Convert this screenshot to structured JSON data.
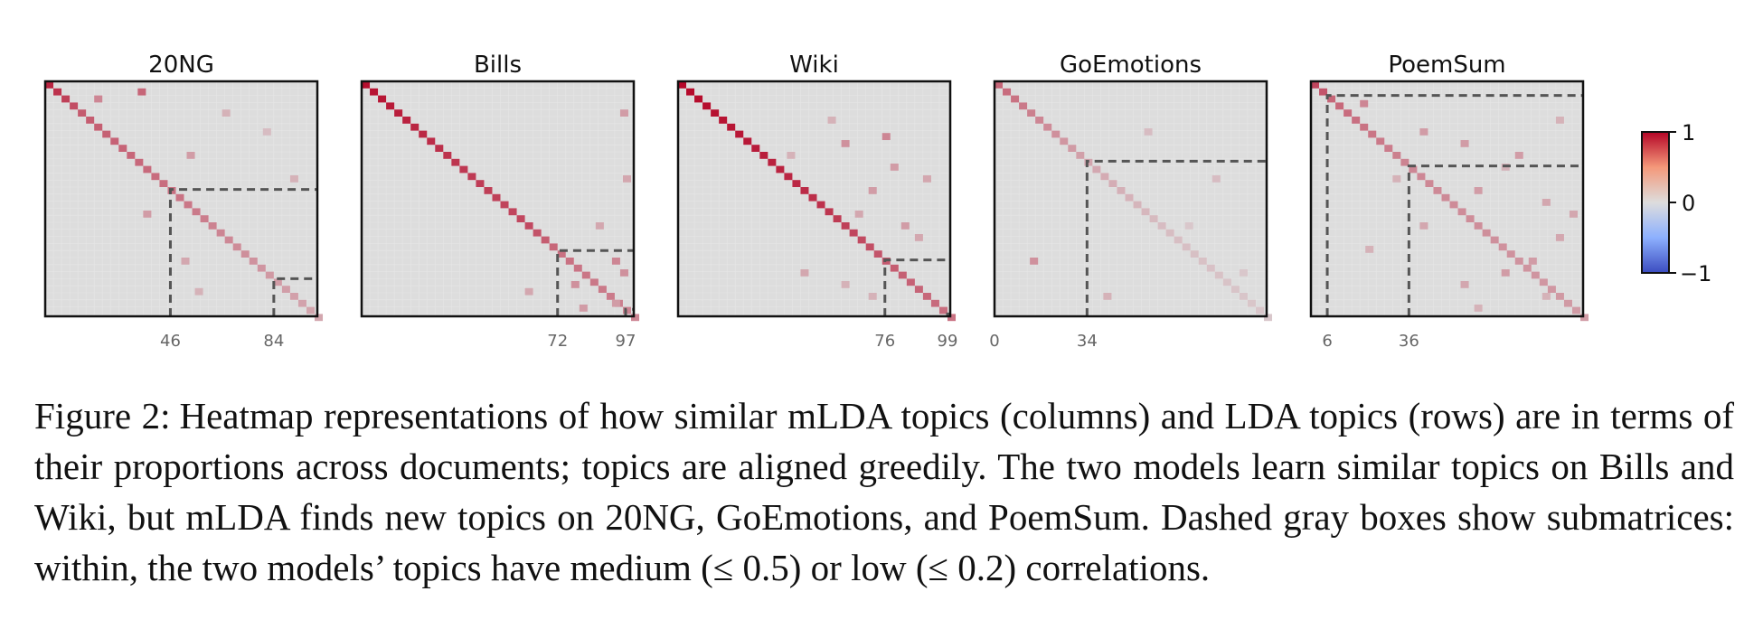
{
  "chart_data": [
    {
      "type": "heatmap",
      "title": "20NG",
      "n": 100,
      "xticks": [
        46,
        84
      ],
      "dashed_boxes": [
        46,
        84
      ],
      "scale": [
        -1,
        1
      ],
      "diag_profile": [
        [
          0,
          0.85
        ],
        [
          12,
          0.6
        ],
        [
          46,
          0.5
        ],
        [
          60,
          0.42
        ],
        [
          84,
          0.3
        ],
        [
          99,
          0.25
        ]
      ],
      "extra_cells": [
        [
          3,
          34,
          0.55
        ],
        [
          6,
          18,
          0.4
        ],
        [
          30,
          52,
          0.3
        ],
        [
          55,
          36,
          0.3
        ],
        [
          75,
          50,
          0.25
        ],
        [
          12,
          65,
          0.2
        ],
        [
          88,
          55,
          0.2
        ],
        [
          40,
          90,
          0.2
        ],
        [
          20,
          80,
          0.15
        ]
      ]
    },
    {
      "type": "heatmap",
      "title": "Bills",
      "n": 100,
      "xticks": [
        72,
        97
      ],
      "dashed_boxes": [
        72,
        97
      ],
      "scale": [
        -1,
        1
      ],
      "diag_profile": [
        [
          0,
          0.95
        ],
        [
          30,
          0.78
        ],
        [
          60,
          0.68
        ],
        [
          72,
          0.5
        ],
        [
          90,
          0.45
        ],
        [
          99,
          0.4
        ]
      ],
      "extra_cells": [
        [
          75,
          92,
          0.4
        ],
        [
          80,
          95,
          0.35
        ],
        [
          85,
          77,
          0.35
        ],
        [
          95,
          80,
          0.3
        ],
        [
          12,
          95,
          0.3
        ],
        [
          40,
          96,
          0.25
        ],
        [
          88,
          60,
          0.25
        ],
        [
          60,
          86,
          0.25
        ],
        [
          93,
          92,
          0.3
        ]
      ]
    },
    {
      "type": "heatmap",
      "title": "Wiki",
      "n": 100,
      "xticks": [
        76,
        99
      ],
      "dashed_boxes": [
        76,
        99
      ],
      "scale": [
        -1,
        1
      ],
      "diag_profile": [
        [
          0,
          0.98
        ],
        [
          25,
          0.9
        ],
        [
          50,
          0.8
        ],
        [
          76,
          0.6
        ],
        [
          99,
          0.5
        ]
      ],
      "extra_cells": [
        [
          25,
          60,
          0.35
        ],
        [
          22,
          75,
          0.4
        ],
        [
          35,
          78,
          0.3
        ],
        [
          45,
          70,
          0.3
        ],
        [
          60,
          82,
          0.3
        ],
        [
          65,
          87,
          0.25
        ],
        [
          40,
          90,
          0.25
        ],
        [
          55,
          65,
          0.25
        ],
        [
          80,
          45,
          0.25
        ],
        [
          85,
          60,
          0.2
        ],
        [
          90,
          70,
          0.2
        ],
        [
          30,
          40,
          0.2
        ],
        [
          15,
          55,
          0.2
        ]
      ]
    },
    {
      "type": "heatmap",
      "title": "GoEmotions",
      "n": 100,
      "xticks": [
        0,
        34
      ],
      "dashed_boxes": [
        34
      ],
      "scale": [
        -1,
        1
      ],
      "diag_profile": [
        [
          0,
          0.55
        ],
        [
          15,
          0.4
        ],
        [
          34,
          0.25
        ],
        [
          60,
          0.15
        ],
        [
          99,
          0.1
        ]
      ],
      "extra_cells": [
        [
          75,
          13,
          0.35
        ],
        [
          90,
          40,
          0.2
        ],
        [
          20,
          55,
          0.15
        ],
        [
          40,
          80,
          0.15
        ],
        [
          60,
          70,
          0.1
        ],
        [
          80,
          90,
          0.1
        ]
      ]
    },
    {
      "type": "heatmap",
      "title": "PoemSum",
      "n": 100,
      "xticks": [
        6,
        36
      ],
      "dashed_boxes": [
        6,
        36
      ],
      "scale": [
        -1,
        1
      ],
      "diag_profile": [
        [
          0,
          0.7
        ],
        [
          6,
          0.55
        ],
        [
          36,
          0.4
        ],
        [
          70,
          0.35
        ],
        [
          99,
          0.3
        ]
      ],
      "extra_cells": [
        [
          8,
          18,
          0.4
        ],
        [
          20,
          40,
          0.3
        ],
        [
          25,
          55,
          0.3
        ],
        [
          30,
          75,
          0.3
        ],
        [
          45,
          60,
          0.3
        ],
        [
          50,
          85,
          0.25
        ],
        [
          60,
          40,
          0.25
        ],
        [
          65,
          90,
          0.25
        ],
        [
          70,
          20,
          0.2
        ],
        [
          80,
          70,
          0.3
        ],
        [
          85,
          55,
          0.25
        ],
        [
          90,
          85,
          0.2
        ],
        [
          15,
          90,
          0.2
        ],
        [
          40,
          30,
          0.2
        ],
        [
          55,
          95,
          0.25
        ],
        [
          75,
          80,
          0.3
        ],
        [
          35,
          70,
          0.2
        ],
        [
          95,
          60,
          0.2
        ]
      ]
    }
  ],
  "colorbar": {
    "tick_labels": [
      "1",
      "0",
      "−1"
    ],
    "colors": [
      "#b40426",
      "#f4987a",
      "#dddddd",
      "#8db0fe",
      "#3b4cc0"
    ]
  },
  "caption": {
    "label": "Figure 2:",
    "text": "Heatmap representations of how similar mLDA topics (columns) and LDA topics (rows) are in terms of their proportions across documents; topics are aligned greedily. The two models learn similar topics on Bills and Wiki, but mLDA finds new topics on 20NG, GoEmotions, and PoemSum. Dashed gray boxes show submatrices: within, the two models’ topics have medium (≤ 0.5) or low (≤ 0.2) correlations."
  }
}
